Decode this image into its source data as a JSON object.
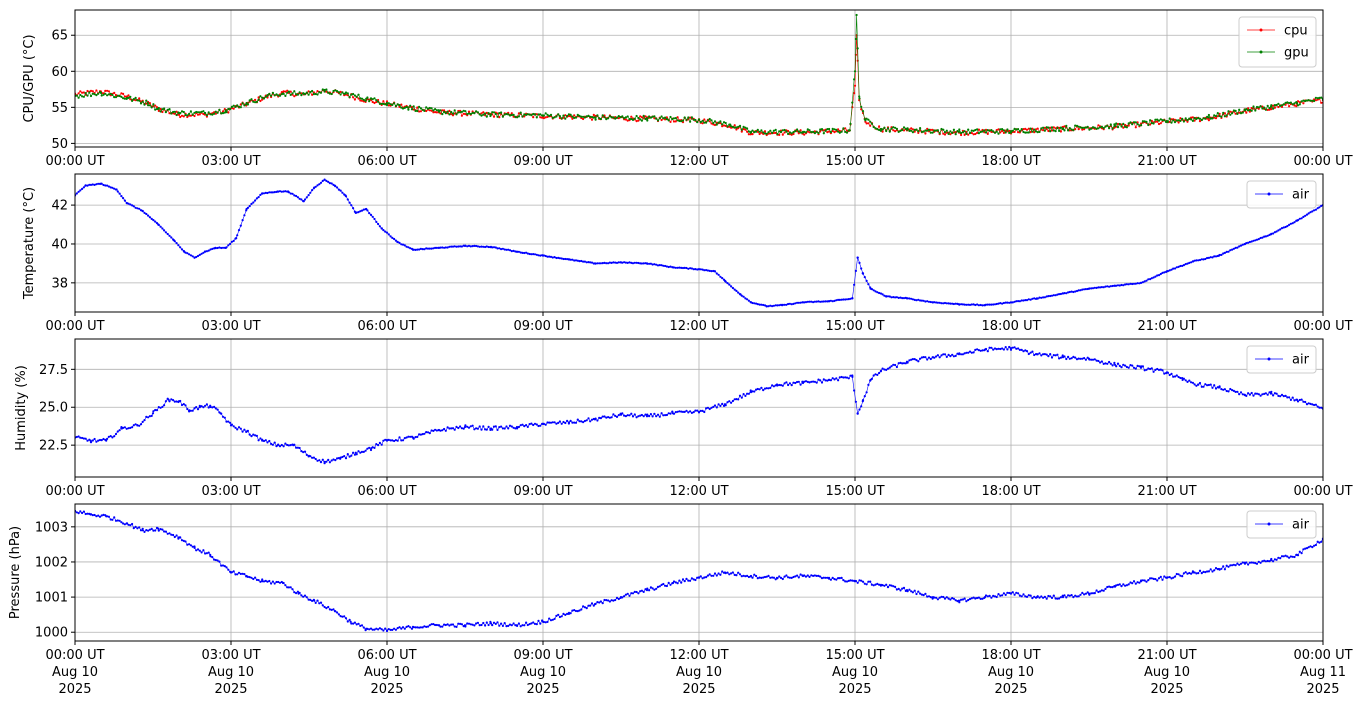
{
  "chart_data": [
    {
      "type": "line",
      "ylabel": "CPU/GPU (°C)",
      "xlim": [
        "2025-08-10 00:00",
        "2025-08-11 00:00"
      ],
      "ylim": [
        49.5,
        68.5
      ],
      "yticks": [
        50,
        55,
        60,
        65
      ],
      "xtick_labels": [
        "00:00 UT",
        "03:00 UT",
        "06:00 UT",
        "09:00 UT",
        "12:00 UT",
        "15:00 UT",
        "18:00 UT",
        "21:00 UT",
        "00:00 UT"
      ],
      "grid": true,
      "legend": "upper-right",
      "series": [
        {
          "name": "cpu",
          "color": "#ff0000",
          "x": [
            0.0,
            0.5,
            1.0,
            1.4,
            1.6,
            2.0,
            2.5,
            2.9,
            3.3,
            3.7,
            4.0,
            4.4,
            4.8,
            5.2,
            5.6,
            6.0,
            6.4,
            7.0,
            8.0,
            9.0,
            10.0,
            11.0,
            12.0,
            12.6,
            13.0,
            14.0,
            14.9,
            15.0,
            15.03,
            15.08,
            15.2,
            15.5,
            16.0,
            17.0,
            18.0,
            19.0,
            20.0,
            21.0,
            21.8,
            22.5,
            23.0,
            23.5,
            24.0
          ],
          "y": [
            56.8,
            57.2,
            56.5,
            55.5,
            54.8,
            54.0,
            54.0,
            54.5,
            55.5,
            56.5,
            57.0,
            56.8,
            57.3,
            56.8,
            56.0,
            55.5,
            55.0,
            54.3,
            54.0,
            53.8,
            53.6,
            53.4,
            53.2,
            52.5,
            51.5,
            51.5,
            51.8,
            58.0,
            65.0,
            56.0,
            53.0,
            52.0,
            51.8,
            51.5,
            51.7,
            52.0,
            52.3,
            53.0,
            53.5,
            54.5,
            55.0,
            55.5,
            56.0
          ]
        },
        {
          "name": "gpu",
          "color": "#008000",
          "x": [
            0.0,
            0.5,
            1.0,
            1.4,
            1.6,
            2.0,
            2.5,
            2.9,
            3.3,
            3.7,
            4.0,
            4.4,
            4.8,
            5.2,
            5.6,
            6.0,
            6.4,
            7.0,
            8.0,
            9.0,
            10.0,
            11.0,
            12.0,
            12.6,
            13.0,
            14.0,
            14.9,
            15.0,
            15.03,
            15.08,
            15.2,
            15.5,
            16.0,
            17.0,
            18.0,
            19.0,
            20.0,
            21.0,
            21.8,
            22.5,
            23.0,
            23.5,
            24.0
          ],
          "y": [
            56.6,
            57.0,
            56.3,
            55.6,
            54.8,
            54.2,
            54.2,
            54.6,
            55.6,
            56.6,
            56.9,
            56.9,
            57.2,
            56.9,
            56.2,
            55.6,
            55.0,
            54.4,
            54.0,
            53.9,
            53.6,
            53.5,
            53.3,
            52.6,
            51.6,
            51.6,
            51.8,
            60.0,
            67.8,
            56.5,
            53.2,
            52.0,
            51.9,
            51.6,
            51.7,
            52.1,
            52.4,
            53.1,
            53.6,
            54.6,
            55.1,
            55.6,
            56.2
          ]
        }
      ]
    },
    {
      "type": "line",
      "ylabel": "Temperature (°C)",
      "xlim": [
        "2025-08-10 00:00",
        "2025-08-11 00:00"
      ],
      "ylim": [
        36.5,
        43.6
      ],
      "yticks": [
        38,
        40,
        42
      ],
      "xtick_labels": [
        "00:00 UT",
        "03:00 UT",
        "06:00 UT",
        "09:00 UT",
        "12:00 UT",
        "15:00 UT",
        "18:00 UT",
        "21:00 UT",
        "00:00 UT"
      ],
      "grid": true,
      "legend": "upper-right",
      "series": [
        {
          "name": "air",
          "color": "#0000ff",
          "x": [
            0.0,
            0.2,
            0.5,
            0.8,
            1.0,
            1.3,
            1.6,
            1.9,
            2.1,
            2.3,
            2.5,
            2.7,
            2.9,
            3.1,
            3.3,
            3.6,
            3.9,
            4.1,
            4.4,
            4.6,
            4.8,
            5.0,
            5.2,
            5.4,
            5.6,
            5.9,
            6.2,
            6.5,
            7.0,
            7.5,
            8.0,
            8.5,
            9.0,
            9.5,
            10.0,
            10.5,
            11.0,
            11.5,
            12.0,
            12.3,
            12.5,
            12.8,
            13.0,
            13.3,
            13.6,
            14.0,
            14.5,
            14.95,
            15.05,
            15.15,
            15.3,
            15.6,
            16.0,
            16.5,
            17.0,
            17.5,
            18.0,
            18.5,
            19.0,
            19.5,
            20.0,
            20.5,
            21.0,
            21.5,
            22.0,
            22.5,
            23.0,
            23.5,
            24.0
          ],
          "y": [
            42.5,
            43.0,
            43.1,
            42.8,
            42.1,
            41.7,
            41.0,
            40.2,
            39.6,
            39.3,
            39.6,
            39.8,
            39.8,
            40.3,
            41.8,
            42.6,
            42.7,
            42.7,
            42.2,
            42.9,
            43.3,
            43.0,
            42.5,
            41.6,
            41.8,
            40.8,
            40.1,
            39.7,
            39.8,
            39.9,
            39.85,
            39.6,
            39.4,
            39.2,
            39.0,
            39.05,
            39.0,
            38.8,
            38.7,
            38.6,
            38.1,
            37.4,
            37.0,
            36.8,
            36.85,
            37.0,
            37.05,
            37.2,
            39.3,
            38.5,
            37.7,
            37.3,
            37.2,
            37.0,
            36.9,
            36.85,
            37.0,
            37.2,
            37.45,
            37.7,
            37.85,
            38.0,
            38.6,
            39.1,
            39.4,
            40.0,
            40.5,
            41.2,
            42.0
          ]
        }
      ]
    },
    {
      "type": "line",
      "ylabel": "Humidity (%)",
      "xlim": [
        "2025-08-10 00:00",
        "2025-08-11 00:00"
      ],
      "ylim": [
        20.4,
        29.5
      ],
      "yticks": [
        22.5,
        25.0,
        27.5
      ],
      "ytick_labels": [
        "22.5",
        "25.0",
        "27.5"
      ],
      "xtick_labels": [
        "00:00 UT",
        "03:00 UT",
        "06:00 UT",
        "09:00 UT",
        "12:00 UT",
        "15:00 UT",
        "18:00 UT",
        "21:00 UT",
        "00:00 UT"
      ],
      "grid": true,
      "legend": "upper-right",
      "series": [
        {
          "name": "air",
          "color": "#0000ff",
          "x": [
            0.0,
            0.3,
            0.6,
            0.9,
            1.2,
            1.5,
            1.8,
            2.0,
            2.2,
            2.4,
            2.6,
            2.8,
            3.0,
            3.3,
            3.6,
            3.9,
            4.2,
            4.5,
            4.8,
            5.1,
            5.4,
            5.7,
            6.0,
            6.5,
            7.0,
            7.5,
            8.0,
            8.5,
            9.0,
            9.5,
            10.0,
            10.5,
            11.0,
            11.5,
            12.0,
            12.5,
            13.0,
            13.5,
            14.0,
            14.5,
            14.95,
            15.05,
            15.15,
            15.3,
            15.5,
            16.0,
            16.5,
            17.0,
            17.5,
            18.0,
            18.5,
            19.0,
            19.5,
            20.0,
            20.5,
            21.0,
            21.3,
            21.6,
            22.0,
            22.5,
            23.0,
            23.5,
            24.0
          ],
          "y": [
            23.0,
            22.8,
            22.8,
            23.6,
            23.8,
            24.6,
            25.5,
            25.4,
            24.8,
            25.0,
            25.1,
            24.6,
            23.8,
            23.4,
            22.8,
            22.5,
            22.5,
            21.8,
            21.4,
            21.6,
            22.0,
            22.3,
            22.8,
            23.0,
            23.5,
            23.7,
            23.6,
            23.7,
            23.9,
            24.0,
            24.2,
            24.5,
            24.4,
            24.6,
            24.7,
            25.2,
            26.0,
            26.5,
            26.6,
            26.8,
            27.0,
            24.6,
            25.4,
            26.8,
            27.4,
            28.0,
            28.3,
            28.5,
            28.8,
            28.9,
            28.5,
            28.3,
            28.2,
            27.8,
            27.6,
            27.3,
            26.8,
            26.5,
            26.3,
            25.8,
            25.9,
            25.5,
            24.9
          ]
        }
      ]
    },
    {
      "type": "line",
      "ylabel": "Pressure (hPa)",
      "xlim": [
        "2025-08-10 00:00",
        "2025-08-11 00:00"
      ],
      "ylim": [
        999.75,
        1003.65
      ],
      "yticks": [
        1000,
        1001,
        1002,
        1003
      ],
      "xtick_labels": [
        "00:00 UT\nAug 10\n2025",
        "03:00 UT\nAug 10\n2025",
        "06:00 UT\nAug 10\n2025",
        "09:00 UT\nAug 10\n2025",
        "12:00 UT\nAug 10\n2025",
        "15:00 UT\nAug 10\n2025",
        "18:00 UT\nAug 10\n2025",
        "21:00 UT\nAug 10\n2025",
        "00:00 UT\nAug 11\n2025"
      ],
      "grid": true,
      "legend": "upper-right",
      "series": [
        {
          "name": "air",
          "color": "#0000ff",
          "x": [
            0.0,
            0.3,
            0.6,
            1.0,
            1.3,
            1.6,
            2.0,
            2.3,
            2.6,
            3.0,
            3.3,
            3.6,
            4.0,
            4.3,
            4.6,
            5.0,
            5.3,
            5.6,
            6.0,
            6.5,
            7.0,
            7.5,
            8.0,
            8.5,
            9.0,
            9.5,
            10.0,
            10.5,
            11.0,
            11.5,
            12.0,
            12.5,
            13.0,
            13.5,
            14.0,
            14.5,
            15.0,
            15.5,
            16.0,
            16.5,
            17.0,
            17.5,
            18.0,
            18.5,
            19.0,
            19.5,
            20.0,
            20.5,
            21.0,
            21.5,
            22.0,
            22.5,
            23.0,
            23.5,
            24.0
          ],
          "y": [
            1003.45,
            1003.35,
            1003.3,
            1003.1,
            1002.9,
            1002.95,
            1002.7,
            1002.4,
            1002.2,
            1001.7,
            1001.6,
            1001.45,
            1001.4,
            1001.1,
            1000.9,
            1000.6,
            1000.3,
            1000.1,
            1000.05,
            1000.15,
            1000.2,
            1000.2,
            1000.25,
            1000.2,
            1000.3,
            1000.55,
            1000.8,
            1001.0,
            1001.2,
            1001.4,
            1001.55,
            1001.7,
            1001.6,
            1001.55,
            1001.6,
            1001.55,
            1001.45,
            1001.35,
            1001.2,
            1001.0,
            1000.9,
            1001.0,
            1001.1,
            1001.0,
            1001.0,
            1001.1,
            1001.3,
            1001.45,
            1001.55,
            1001.7,
            1001.8,
            1001.95,
            1002.05,
            1002.2,
            1002.65
          ]
        }
      ]
    }
  ]
}
